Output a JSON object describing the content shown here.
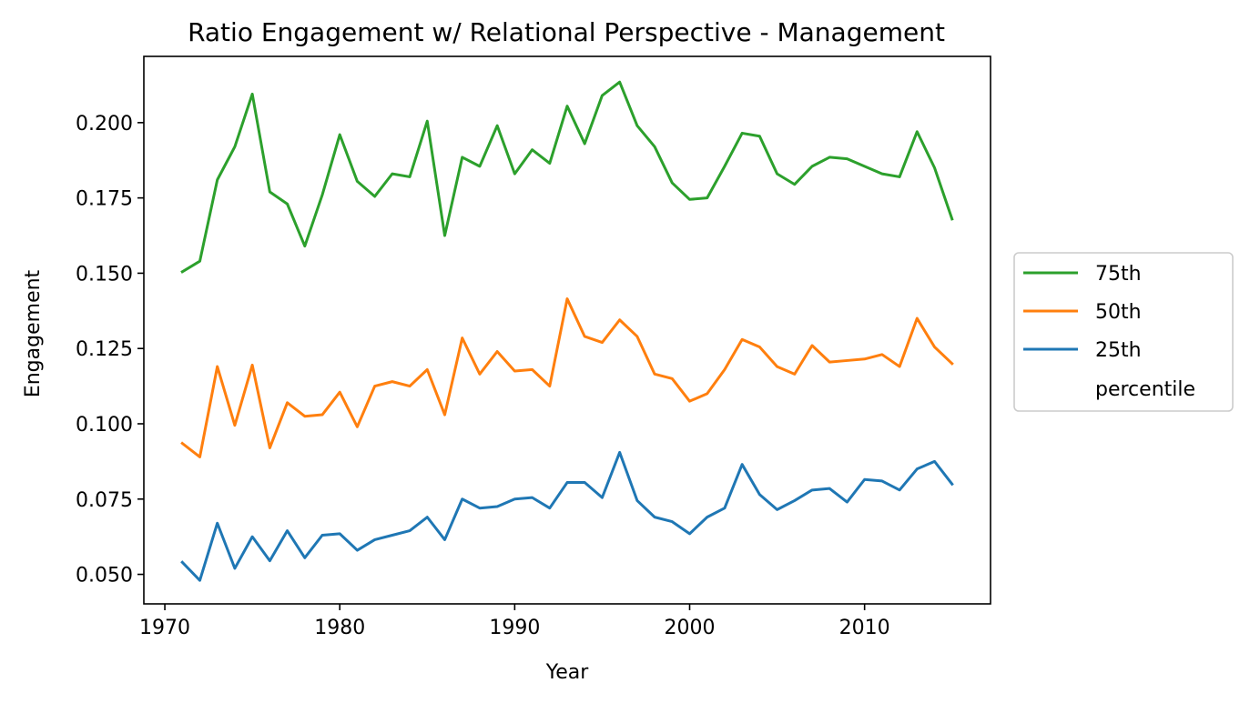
{
  "chart_data": {
    "type": "line",
    "title": "Ratio Engagement w/ Relational Perspective - Management",
    "xlabel": "Year",
    "ylabel": "Engagement",
    "xlim": [
      1968.8,
      2017.2
    ],
    "ylim": [
      0.0402,
      0.222
    ],
    "xticks": [
      1970,
      1980,
      1990,
      2000,
      2010
    ],
    "yticks": [
      0.05,
      0.075,
      0.1,
      0.125,
      0.15,
      0.175,
      0.2
    ],
    "ytick_labels": [
      "0.050",
      "0.075",
      "0.100",
      "0.125",
      "0.150",
      "0.175",
      "0.200"
    ],
    "grid": false,
    "legend_position": "outside-right",
    "legend_entries": [
      "75th",
      "50th",
      "25th",
      "percentile"
    ],
    "x": [
      1971,
      1972,
      1973,
      1974,
      1975,
      1976,
      1977,
      1978,
      1979,
      1980,
      1981,
      1982,
      1983,
      1984,
      1985,
      1986,
      1987,
      1988,
      1989,
      1990,
      1991,
      1992,
      1993,
      1994,
      1995,
      1996,
      1997,
      1998,
      1999,
      2000,
      2001,
      2002,
      2003,
      2004,
      2005,
      2006,
      2007,
      2008,
      2009,
      2010,
      2011,
      2012,
      2013,
      2014,
      2015
    ],
    "series": [
      {
        "name": "75th",
        "color": "#2ca02c",
        "values": [
          0.1505,
          0.154,
          0.181,
          0.192,
          0.2095,
          0.177,
          0.173,
          0.159,
          0.176,
          0.196,
          0.1805,
          0.1755,
          0.183,
          0.182,
          0.2005,
          0.1625,
          0.1885,
          0.1855,
          0.199,
          0.183,
          0.191,
          0.1865,
          0.2055,
          0.193,
          0.209,
          0.2135,
          0.199,
          0.192,
          0.18,
          0.1745,
          0.175,
          0.1855,
          0.1965,
          0.1955,
          0.183,
          0.1795,
          0.1855,
          0.1885,
          0.188,
          0.1855,
          0.183,
          0.182,
          0.197,
          0.185,
          0.168
        ]
      },
      {
        "name": "50th",
        "color": "#ff7f0e",
        "values": [
          0.0935,
          0.089,
          0.119,
          0.0995,
          0.1195,
          0.092,
          0.107,
          0.1025,
          0.103,
          0.1105,
          0.099,
          0.1125,
          0.114,
          0.1125,
          0.118,
          0.103,
          0.1285,
          0.1165,
          0.124,
          0.1175,
          0.118,
          0.1125,
          0.1415,
          0.129,
          0.127,
          0.1345,
          0.129,
          0.1165,
          0.115,
          0.1075,
          0.11,
          0.118,
          0.128,
          0.1255,
          0.119,
          0.1165,
          0.126,
          0.1205,
          0.121,
          0.1215,
          0.123,
          0.119,
          0.135,
          0.1255,
          0.12
        ]
      },
      {
        "name": "25th",
        "color": "#1f77b4",
        "values": [
          0.054,
          0.048,
          0.067,
          0.052,
          0.0625,
          0.0545,
          0.0645,
          0.0555,
          0.063,
          0.0635,
          0.058,
          0.0615,
          0.063,
          0.0645,
          0.069,
          0.0615,
          0.075,
          0.072,
          0.0725,
          0.075,
          0.0755,
          0.072,
          0.0805,
          0.0805,
          0.0755,
          0.0905,
          0.0745,
          0.069,
          0.0675,
          0.0635,
          0.069,
          0.072,
          0.0865,
          0.0765,
          0.0715,
          0.0745,
          0.078,
          0.0785,
          0.074,
          0.0815,
          0.081,
          0.078,
          0.085,
          0.0875,
          0.08
        ]
      }
    ]
  }
}
